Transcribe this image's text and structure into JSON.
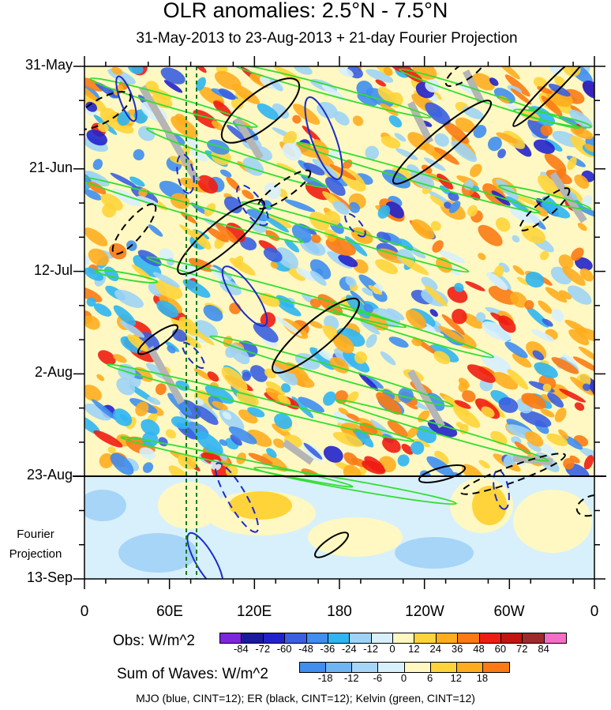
{
  "title": "OLR anomalies: 2.5°N - 7.5°N",
  "subtitle": "31-May-2013 to 23-Aug-2013 + 21-day Fourier Projection",
  "y_labels": [
    "31-May",
    "21-Jun",
    "12-Jul",
    "2-Aug",
    "23-Aug",
    "13-Sep"
  ],
  "x_labels": [
    "0",
    "60E",
    "120E",
    "180",
    "120W",
    "60W",
    "0"
  ],
  "projection_label": [
    "Fourier",
    "Projection"
  ],
  "obs_colorbar": {
    "label": "Obs: W/m^2",
    "ticks": [
      "-84",
      "-72",
      "-60",
      "-48",
      "-36",
      "-24",
      "-12",
      "0",
      "12",
      "24",
      "36",
      "48",
      "60",
      "72",
      "84"
    ],
    "colors": [
      "#7c26e0",
      "#1a1a9e",
      "#2222cc",
      "#3a5fe0",
      "#3f8ef0",
      "#2fb5f2",
      "#9ed3f5",
      "#d8f0fb",
      "#fff8c2",
      "#ffd43a",
      "#ffad1f",
      "#fb7a14",
      "#f01d12",
      "#c3140f",
      "#9e2a2a",
      "#f56ec6"
    ]
  },
  "sum_colorbar": {
    "label": "Sum of Waves: W/m^2",
    "ticks": [
      "-18",
      "-12",
      "-6",
      "0",
      "6",
      "12",
      "18"
    ],
    "colors": [
      "#3f8ef0",
      "#6fb4f3",
      "#a7d5f7",
      "#d8f0fb",
      "#fff8c2",
      "#ffd43a",
      "#ffad1f",
      "#fb7a14"
    ]
  },
  "footer": "MJO (blue, CINT=12); ER (black, CINT=12); Kelvin (green, CINT=12)",
  "chart_data": {
    "type": "heatmap",
    "title": "OLR anomalies: 2.5°N - 7.5°N",
    "subtitle": "31-May-2013 to 23-Aug-2013 + 21-day Fourier Projection",
    "x_axis": {
      "ticks": [
        "0",
        "60E",
        "120E",
        "180",
        "120W",
        "60W",
        "0"
      ],
      "range_deg_east": [
        0,
        360
      ]
    },
    "y_axis": {
      "ticks": [
        "31-May",
        "21-Jun",
        "12-Jul",
        "2-Aug",
        "23-Aug",
        "13-Sep"
      ],
      "range": [
        "2013-05-31",
        "2013-09-13"
      ],
      "reversed": true
    },
    "observed_period": [
      "2013-05-31",
      "2013-08-23"
    ],
    "projection_period": [
      "2013-08-23",
      "2013-09-13"
    ],
    "field_units": "W/m^2",
    "reference_lines_deg_east": [
      72,
      78
    ],
    "contour_series": [
      {
        "name": "MJO",
        "color": "blue",
        "cint": 12
      },
      {
        "name": "ER",
        "color": "black",
        "cint": 12
      },
      {
        "name": "Kelvin",
        "color": "green",
        "cint": 12
      }
    ],
    "grid": false
  }
}
